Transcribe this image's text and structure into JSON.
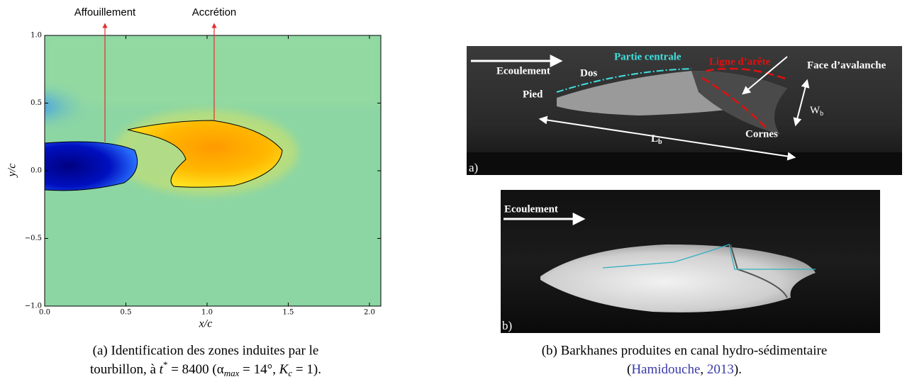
{
  "figure_a": {
    "annotations": [
      "Affouillement",
      "Accrétion"
    ],
    "xlabel": "x/c",
    "ylabel": "y/c",
    "xlim": [
      0,
      2.07
    ],
    "ylim": [
      -1,
      1
    ],
    "xticks": [
      {
        "value": 0,
        "label": "0.0"
      },
      {
        "value": 0.5,
        "label": "0.5"
      },
      {
        "value": 1,
        "label": "1.0"
      },
      {
        "value": 1.5,
        "label": "1.5"
      },
      {
        "value": 2,
        "label": "2.0"
      }
    ],
    "yticks": [
      {
        "value": -1,
        "label": "−1.0"
      },
      {
        "value": -0.5,
        "label": "−0.5"
      },
      {
        "value": 0,
        "label": "0.0"
      },
      {
        "value": 0.5,
        "label": "0.5"
      },
      {
        "value": 1,
        "label": "1.0"
      }
    ],
    "caption": {
      "line1": "(a) Identification des zones induites par le",
      "line2": [
        "tourbillon, à ",
        "t",
        "*",
        " = 8400 (α",
        "max",
        " = 14°, ",
        "K",
        "c",
        " = 1)."
      ]
    }
  },
  "figure_b": {
    "photo_a": {
      "panel": "a)",
      "flow": "Ecoulement",
      "back": "Dos",
      "center": "Partie centrale",
      "crest": "Ligne d’arête",
      "avalanche": "Face d’avalanche",
      "foot": "Pied",
      "horns": "Cornes",
      "width": {
        "main": "W",
        "sub": "b"
      },
      "length": {
        "main": "L",
        "sub": "b"
      }
    },
    "photo_b": {
      "panel": "b)",
      "flow": "Ecoulement"
    },
    "caption": {
      "line1": "(b) Barkhanes produites en canal hydro-sédimentaire",
      "line2": [
        "(",
        "Hamidouche",
        ", ",
        "2013",
        ")."
      ]
    }
  }
}
